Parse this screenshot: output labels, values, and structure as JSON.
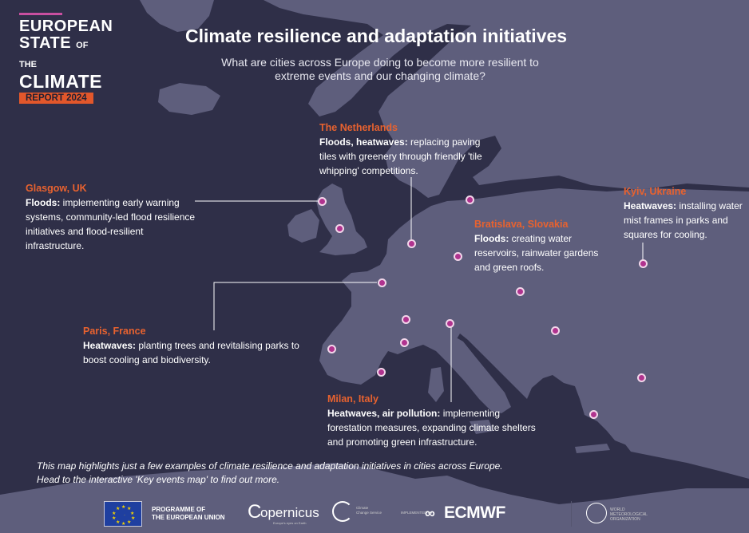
{
  "header": {
    "logo_line1": "EUROPEAN",
    "logo_line2_big": "STATE",
    "logo_line2_small": "OF THE",
    "logo_line3": "CLIMATE",
    "logo_badge": "REPORT 2024",
    "title": "Climate resilience and adaptation initiatives",
    "subtitle": "What are cities across Europe doing to become more resilient to extreme events and our changing climate?"
  },
  "colors": {
    "background": "#2f2f48",
    "land": "#5e5e7c",
    "city_accent": "#e8622f",
    "marker": "#b0338f"
  },
  "callouts": [
    {
      "city": "The Netherlands",
      "hazard": "Floods, heatwaves:",
      "text": " replacing paving tiles with greenery through friendly 'tile whipping' competitions."
    },
    {
      "city": "Glasgow, UK",
      "hazard": "Floods:",
      "text": " implementing early warning systems, community-led flood resilience initiatives and flood-resilient infrastructure."
    },
    {
      "city": "Bratislava, Slovakia",
      "hazard": "Floods:",
      "text": " creating water reservoirs, rainwater gardens and green roofs."
    },
    {
      "city": "Kyiv, Ukraine",
      "hazard": "Heatwaves:",
      "text": " installing water mist frames in parks and squares for cooling."
    },
    {
      "city": "Paris, France",
      "hazard": "Heatwaves:",
      "text": " planting trees and revitalising parks to boost cooling and biodiversity."
    },
    {
      "city": "Milan, Italy",
      "hazard": "Heatwaves, air pollution:",
      "text": " implementing forestation measures, expanding climate shelters and promoting green infrastructure."
    }
  ],
  "footer": {
    "line1": "This map highlights just a few examples of climate resilience and adaptation initiatives in cities across Europe.",
    "line2": "Head to the interactive 'Key events map' to find out more."
  },
  "partners": {
    "eu_program": "PROGRAMME OF\nTHE EUROPEAN UNION",
    "copernicus": "opernicus",
    "copernicus_sub": "Europe's eyes on Earth",
    "c3s": "Climate\nChange Service",
    "implemented_by": "IMPLEMENTED BY",
    "ecmwf": "ECMWF",
    "wmo": "WORLD\nMETEOROLOGICAL\nORGANIZATION"
  }
}
